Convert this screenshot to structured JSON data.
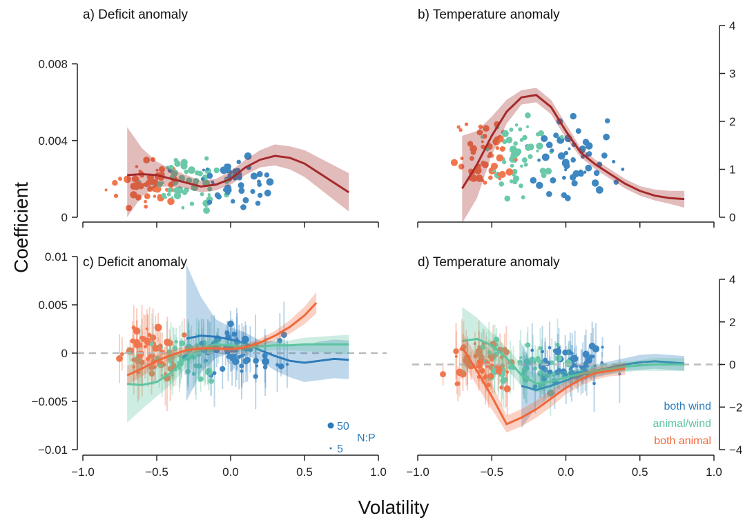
{
  "figure": {
    "ylabel": "Coefficient",
    "xlabel": "Volatility",
    "series_names": [
      "both wind",
      "animal/wind",
      "both animal"
    ],
    "colors": {
      "both wind": "#2b7bba",
      "animal/wind": "#5cc4a0",
      "both animal": "#f0683a",
      "overall": "#a52a2a"
    },
    "size_legend": {
      "title": "N:P",
      "large": "50",
      "small": "5"
    }
  },
  "chart_data": [
    {
      "panel": "a",
      "type": "scatter",
      "title": "a) Deficit anomaly",
      "x_ticks": [
        -1.0,
        -0.5,
        0.0,
        0.5,
        1.0
      ],
      "x_tick_labels": [
        "-1.0",
        "-0.5",
        "0.0",
        "0.5",
        "1.0"
      ],
      "ylim": [
        0,
        0.01
      ],
      "y_ticks": [
        0,
        0.004,
        0.008
      ],
      "y_tick_labels": [
        "0",
        "0.004",
        "0.008"
      ],
      "y_axis_side": "left",
      "trend": {
        "name": "overall",
        "x": [
          -0.7,
          -0.6,
          -0.5,
          -0.4,
          -0.3,
          -0.2,
          -0.1,
          0.0,
          0.1,
          0.2,
          0.3,
          0.4,
          0.5,
          0.6,
          0.7,
          0.8
        ],
        "y": [
          0.0022,
          0.00225,
          0.0022,
          0.002,
          0.0018,
          0.0016,
          0.0017,
          0.002,
          0.0026,
          0.003,
          0.0032,
          0.0031,
          0.0028,
          0.0023,
          0.0018,
          0.0013
        ],
        "lower": [
          0.0,
          0.0011,
          0.0016,
          0.0016,
          0.0015,
          0.0013,
          0.0014,
          0.0017,
          0.0022,
          0.0026,
          0.0027,
          0.0025,
          0.0021,
          0.0015,
          0.0009,
          0.0003
        ],
        "upper": [
          0.0047,
          0.0036,
          0.0029,
          0.0025,
          0.0022,
          0.0019,
          0.002,
          0.0024,
          0.003,
          0.0035,
          0.0038,
          0.0037,
          0.0035,
          0.0031,
          0.0027,
          0.0023
        ]
      }
    },
    {
      "panel": "b",
      "type": "scatter",
      "title": "b) Temperature anomaly",
      "x_ticks": [
        -1.0,
        -0.5,
        0.0,
        0.5,
        1.0
      ],
      "x_tick_labels": [
        "-1.0",
        "-0.5",
        "0.0",
        "0.5",
        "1.0"
      ],
      "ylim": [
        0,
        4
      ],
      "y_ticks": [
        0,
        1,
        2,
        3,
        4
      ],
      "y_tick_labels": [
        "0",
        "1",
        "2",
        "3",
        "4"
      ],
      "y_axis_side": "right",
      "trend": {
        "name": "overall",
        "x": [
          -0.7,
          -0.6,
          -0.5,
          -0.4,
          -0.3,
          -0.2,
          -0.1,
          0.0,
          0.1,
          0.2,
          0.3,
          0.4,
          0.5,
          0.6,
          0.7,
          0.8
        ],
        "y": [
          0.6,
          1.1,
          1.7,
          2.2,
          2.5,
          2.55,
          2.3,
          1.8,
          1.35,
          1.1,
          0.9,
          0.7,
          0.55,
          0.45,
          0.4,
          0.38
        ],
        "lower": [
          -0.3,
          0.4,
          1.3,
          1.95,
          2.35,
          2.4,
          2.15,
          1.65,
          1.25,
          1.0,
          0.8,
          0.6,
          0.45,
          0.35,
          0.28,
          0.2
        ],
        "upper": [
          1.7,
          1.8,
          2.1,
          2.45,
          2.65,
          2.7,
          2.45,
          1.95,
          1.45,
          1.2,
          1.0,
          0.8,
          0.65,
          0.58,
          0.55,
          0.55
        ]
      }
    },
    {
      "panel": "c",
      "type": "scatter",
      "title": "c) Deficit anomaly",
      "x_ticks": [
        -1.0,
        -0.5,
        0.0,
        0.5,
        1.0
      ],
      "x_tick_labels": [
        "-1.0",
        "-0.5",
        "0.0",
        "0.5",
        "1.0"
      ],
      "ylim": [
        -0.01,
        0.01
      ],
      "y_ticks": [
        -0.01,
        -0.005,
        0,
        0.005,
        0.01
      ],
      "y_tick_labels": [
        "-0.01",
        "-0.005",
        "0",
        "0.005",
        "0.01"
      ],
      "y_axis_side": "left",
      "zero_line": true,
      "series": [
        {
          "name": "both wind",
          "x": [
            -0.3,
            -0.2,
            -0.1,
            0.0,
            0.1,
            0.2,
            0.3,
            0.4,
            0.5,
            0.6,
            0.7,
            0.8
          ],
          "y": [
            0.0015,
            0.0018,
            0.0017,
            0.0014,
            0.001,
            0.0003,
            -0.0003,
            -0.0008,
            -0.001,
            -0.0008,
            -0.0006,
            -0.0007
          ],
          "lower": [
            -0.005,
            -0.002,
            -0.0005,
            0.0,
            -0.0002,
            -0.0008,
            -0.0018,
            -0.0025,
            -0.003,
            -0.0028,
            -0.0026,
            -0.0027
          ],
          "upper": [
            0.0092,
            0.0058,
            0.0035,
            0.0027,
            0.0021,
            0.0013,
            0.0012,
            0.0009,
            0.0008,
            0.0012,
            0.0014,
            0.0013
          ]
        },
        {
          "name": "animal/wind",
          "x": [
            -0.7,
            -0.6,
            -0.5,
            -0.4,
            -0.3,
            -0.2,
            -0.1,
            0.0,
            0.1,
            0.2,
            0.3,
            0.4,
            0.5,
            0.6,
            0.7,
            0.8
          ],
          "y": [
            -0.0032,
            -0.0033,
            -0.003,
            -0.002,
            -0.0005,
            0.0005,
            0.0009,
            0.0008,
            0.0006,
            0.0007,
            0.0008,
            0.0008,
            0.0009,
            0.0009,
            0.0009,
            0.0009
          ],
          "lower": [
            -0.0072,
            -0.0058,
            -0.0045,
            -0.0032,
            -0.0015,
            -0.0002,
            0.0003,
            0.0003,
            0.0001,
            0.0002,
            0.0003,
            0.0003,
            0.0002,
            0.0001,
            0.0,
            -0.0001
          ],
          "upper": [
            0.0008,
            -0.0008,
            -0.0015,
            -0.0008,
            0.0005,
            0.0012,
            0.0015,
            0.0013,
            0.0011,
            0.0012,
            0.0013,
            0.0013,
            0.0016,
            0.0017,
            0.0018,
            0.0019
          ]
        },
        {
          "name": "both animal",
          "x": [
            -0.7,
            -0.6,
            -0.5,
            -0.4,
            -0.3,
            -0.2,
            -0.1,
            0.0,
            0.1,
            0.2,
            0.3,
            0.4,
            0.5,
            0.58
          ],
          "y": [
            -0.0023,
            -0.0016,
            -0.0008,
            -0.0002,
            0.0003,
            0.0005,
            0.0005,
            0.0004,
            0.0006,
            0.0011,
            0.0018,
            0.0027,
            0.0039,
            0.0052
          ],
          "lower": [
            -0.0033,
            -0.0024,
            -0.0014,
            -0.0007,
            -0.0001,
            0.0002,
            0.0002,
            0.0001,
            0.0003,
            0.0007,
            0.0013,
            0.002,
            0.003,
            0.0041
          ],
          "upper": [
            -0.0013,
            -0.0008,
            -0.0002,
            0.0003,
            0.0007,
            0.0008,
            0.0008,
            0.0007,
            0.0009,
            0.0015,
            0.0023,
            0.0034,
            0.0048,
            0.0063
          ]
        }
      ],
      "size_legend_shown": true
    },
    {
      "panel": "d",
      "type": "scatter",
      "title": "d) Temperature anomaly",
      "x_ticks": [
        -1.0,
        -0.5,
        0.0,
        0.5,
        1.0
      ],
      "x_tick_labels": [
        "-1.0",
        "-0.5",
        "0.0",
        "0.5",
        "1.0"
      ],
      "ylim": [
        -4,
        4
      ],
      "y_ticks": [
        -4,
        -2,
        0,
        2,
        4
      ],
      "y_tick_labels": [
        "-4",
        "-2",
        "0",
        "2",
        "4"
      ],
      "y_axis_side": "right",
      "zero_line": true,
      "series": [
        {
          "name": "both wind",
          "x": [
            -0.3,
            -0.2,
            -0.1,
            0.0,
            0.1,
            0.2,
            0.3,
            0.4,
            0.5,
            0.6,
            0.7,
            0.8
          ],
          "y": [
            -1.0,
            -1.2,
            -1.0,
            -0.75,
            -0.5,
            -0.3,
            -0.15,
            0.0,
            0.1,
            0.15,
            0.1,
            0.05
          ],
          "lower": [
            -3.0,
            -2.0,
            -1.5,
            -1.1,
            -0.8,
            -0.6,
            -0.45,
            -0.3,
            -0.25,
            -0.2,
            -0.25,
            -0.3
          ],
          "upper": [
            1.0,
            -0.4,
            -0.5,
            -0.4,
            -0.2,
            0.0,
            0.15,
            0.3,
            0.45,
            0.5,
            0.45,
            0.4
          ]
        },
        {
          "name": "animal/wind",
          "x": [
            -0.7,
            -0.6,
            -0.5,
            -0.4,
            -0.3,
            -0.2,
            -0.1,
            0.0,
            0.1,
            0.2,
            0.3,
            0.4,
            0.5,
            0.6,
            0.7,
            0.8
          ],
          "y": [
            1.1,
            1.2,
            0.9,
            0.3,
            -0.5,
            -0.9,
            -0.8,
            -0.6,
            -0.45,
            -0.3,
            -0.2,
            -0.1,
            -0.05,
            0.0,
            0.0,
            0.0
          ],
          "lower": [
            -0.5,
            0.2,
            0.3,
            -0.2,
            -1.0,
            -1.3,
            -1.2,
            -0.9,
            -0.7,
            -0.55,
            -0.45,
            -0.35,
            -0.3,
            -0.3,
            -0.3,
            -0.3
          ],
          "upper": [
            2.7,
            2.2,
            1.5,
            0.8,
            0.0,
            -0.5,
            -0.4,
            -0.3,
            -0.2,
            -0.05,
            0.05,
            0.15,
            0.2,
            0.3,
            0.3,
            0.3
          ]
        },
        {
          "name": "both animal",
          "x": [
            -0.7,
            -0.6,
            -0.5,
            -0.4,
            -0.3,
            -0.2,
            -0.1,
            0.0,
            0.1,
            0.2,
            0.3,
            0.4
          ],
          "y": [
            0.8,
            -0.3,
            -1.5,
            -2.8,
            -2.5,
            -2.1,
            -1.6,
            -1.1,
            -0.7,
            -0.4,
            -0.3,
            -0.2
          ],
          "lower": [
            0.1,
            -1.0,
            -2.1,
            -3.2,
            -2.9,
            -2.5,
            -2.0,
            -1.4,
            -1.0,
            -0.7,
            -0.55,
            -0.5
          ],
          "upper": [
            1.5,
            0.4,
            -0.9,
            -2.4,
            -2.1,
            -1.7,
            -1.2,
            -0.8,
            -0.4,
            -0.1,
            -0.05,
            0.1
          ]
        }
      ],
      "legend": {
        "placement": "bottom-right",
        "entries": [
          "both wind",
          "animal/wind",
          "both animal"
        ]
      }
    }
  ]
}
